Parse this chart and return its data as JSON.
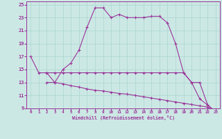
{
  "xlabel": "Windchill (Refroidissement éolien,°C)",
  "background_color": "#cce8e4",
  "grid_color": "#aad4d0",
  "line_color": "#993399",
  "xlim": [
    -0.5,
    23.5
  ],
  "ylim": [
    9,
    25.5
  ],
  "yticks": [
    9,
    11,
    13,
    15,
    17,
    19,
    21,
    23,
    25
  ],
  "xticks": [
    0,
    1,
    2,
    3,
    4,
    5,
    6,
    7,
    8,
    9,
    10,
    11,
    12,
    13,
    14,
    15,
    16,
    17,
    18,
    19,
    20,
    21,
    22,
    23
  ],
  "series1_x": [
    0,
    1,
    2,
    3,
    4,
    5,
    6,
    7,
    8,
    9,
    10,
    11,
    12,
    13,
    14,
    15,
    16,
    17,
    18,
    19,
    20,
    21,
    22,
    23
  ],
  "series1_y": [
    17,
    14.5,
    14.5,
    13,
    15,
    16,
    18,
    21.5,
    24.5,
    24.5,
    23,
    23.5,
    23,
    23,
    23,
    23.2,
    23.2,
    22.2,
    19,
    14.5,
    13,
    10.5,
    9.5,
    8.5
  ],
  "series2_x": [
    2,
    3,
    4,
    5,
    6,
    7,
    8,
    9,
    10,
    11,
    12,
    13,
    14,
    15,
    16,
    17,
    18,
    19,
    20,
    21,
    22,
    23
  ],
  "series2_y": [
    14.5,
    14.5,
    14.5,
    14.5,
    14.5,
    14.5,
    14.5,
    14.5,
    14.5,
    14.5,
    14.5,
    14.5,
    14.5,
    14.5,
    14.5,
    14.5,
    14.5,
    14.5,
    13,
    13,
    9.5,
    8.5
  ],
  "series3_x": [
    2,
    3,
    4,
    5,
    6,
    7,
    8,
    9,
    10,
    11,
    12,
    13,
    14,
    15,
    16,
    17,
    18,
    19,
    20,
    21,
    22,
    23
  ],
  "series3_y": [
    13,
    13,
    12.8,
    12.5,
    12.3,
    12.0,
    11.8,
    11.7,
    11.5,
    11.3,
    11.2,
    11.0,
    10.8,
    10.6,
    10.4,
    10.2,
    10.0,
    9.8,
    9.6,
    9.4,
    9.2,
    8.5
  ]
}
